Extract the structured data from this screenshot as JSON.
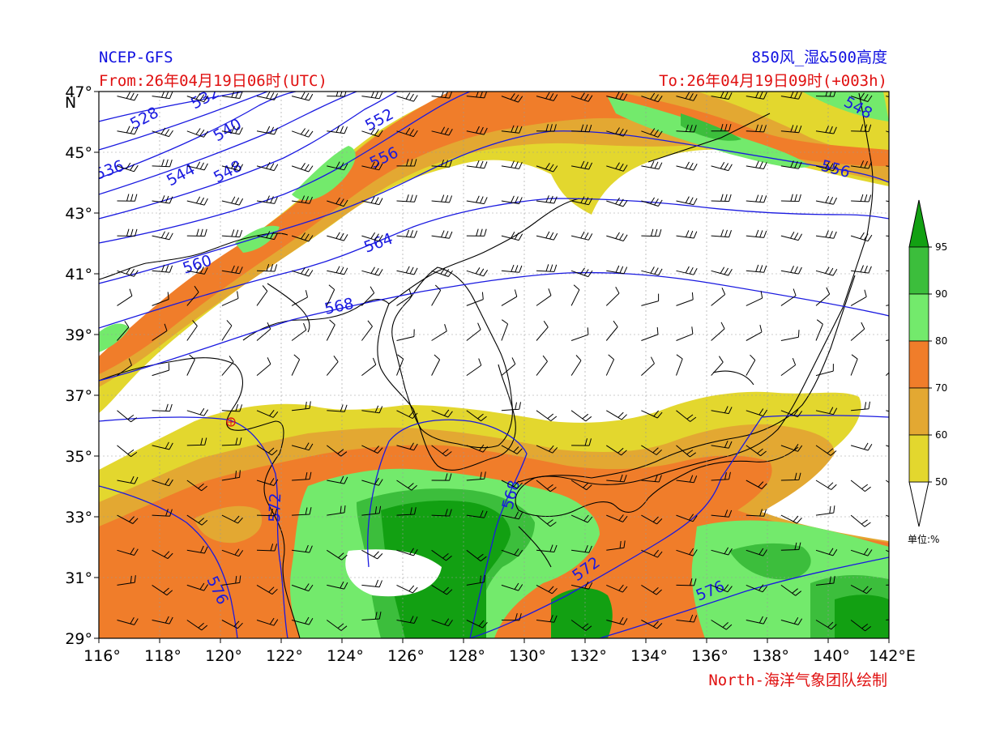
{
  "header": {
    "model": "NCEP-GFS",
    "product": "850风_湿&500高度",
    "from": "From:26年04月19日06时(UTC)",
    "to": "To:26年04月19日09时(+003h)"
  },
  "footer": {
    "credit": "North-海洋气象团队绘制"
  },
  "map": {
    "lon_range": [
      116,
      142
    ],
    "lat_range": [
      29,
      47
    ],
    "lon_ticks": [
      "116°",
      "118°",
      "120°",
      "122°",
      "124°",
      "126°",
      "128°",
      "130°",
      "132°",
      "134°",
      "136°",
      "138°",
      "140°",
      "142°E"
    ],
    "lat_ticks": [
      "29°",
      "31°",
      "33°",
      "35°",
      "37°",
      "39°",
      "41°",
      "43°",
      "45°",
      "47°"
    ],
    "lat_unit": "N"
  },
  "colorbar": {
    "unit_label": "单位:%",
    "levels": [
      "50",
      "60",
      "70",
      "80",
      "90",
      "95"
    ],
    "colors": [
      "#e3d72e",
      "#e3a832",
      "#f07d2a",
      "#73ea6c",
      "#3cbe3c",
      "#12a012"
    ]
  },
  "height_contours": [
    "528",
    "532",
    "536",
    "540",
    "544",
    "548",
    "552",
    "556",
    "560",
    "564",
    "568",
    "572",
    "576"
  ],
  "colors": {
    "contour": "#1a1ae0",
    "header_blue": "#1010e0",
    "header_red": "#e01010"
  }
}
